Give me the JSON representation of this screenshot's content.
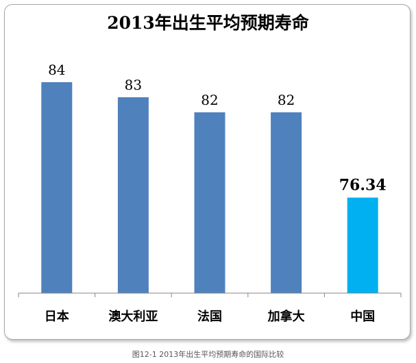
{
  "chart_data": {
    "type": "bar",
    "title": "2013年出生平均预期寿命",
    "categories": [
      "日本",
      "澳大利亚",
      "法国",
      "加拿大",
      "中国"
    ],
    "values": [
      84,
      83,
      82,
      82,
      76.34
    ],
    "value_labels": [
      "84",
      "83",
      "82",
      "82",
      "76.34"
    ],
    "ylim": [
      70,
      85
    ],
    "grid": false,
    "colors": [
      "#4f81bd",
      "#4f81bd",
      "#4f81bd",
      "#4f81bd",
      "#00b0f0"
    ],
    "highlight_index": 4
  },
  "caption": "图12-1 2013年出生平均预期寿命的国际比较"
}
